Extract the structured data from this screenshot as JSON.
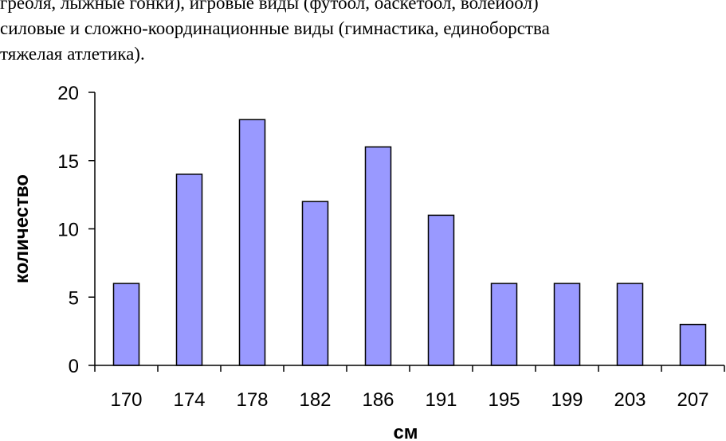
{
  "document": {
    "lines": [
      "греоля, лыжные гонки), игровые виды (футоол, оаскетоол, волеиоол)",
      "силовые и сложно-координационные виды (гимнастика, единоборства",
      "тяжелая атлетика)."
    ]
  },
  "colors": {
    "bar_fill": "#9999ff",
    "bar_stroke": "#000000",
    "axis": "#000000"
  },
  "chart_data": {
    "type": "bar",
    "categories": [
      "170",
      "174",
      "178",
      "182",
      "186",
      "191",
      "195",
      "199",
      "203",
      "207"
    ],
    "values": [
      6,
      14,
      18,
      12,
      16,
      11,
      6,
      6,
      6,
      3
    ],
    "title": "",
    "xlabel": "см",
    "ylabel": "количество",
    "ylim": [
      0,
      20
    ],
    "yticks": [
      "0",
      "5",
      "10",
      "15",
      "20"
    ],
    "grid": false,
    "legend": false
  }
}
